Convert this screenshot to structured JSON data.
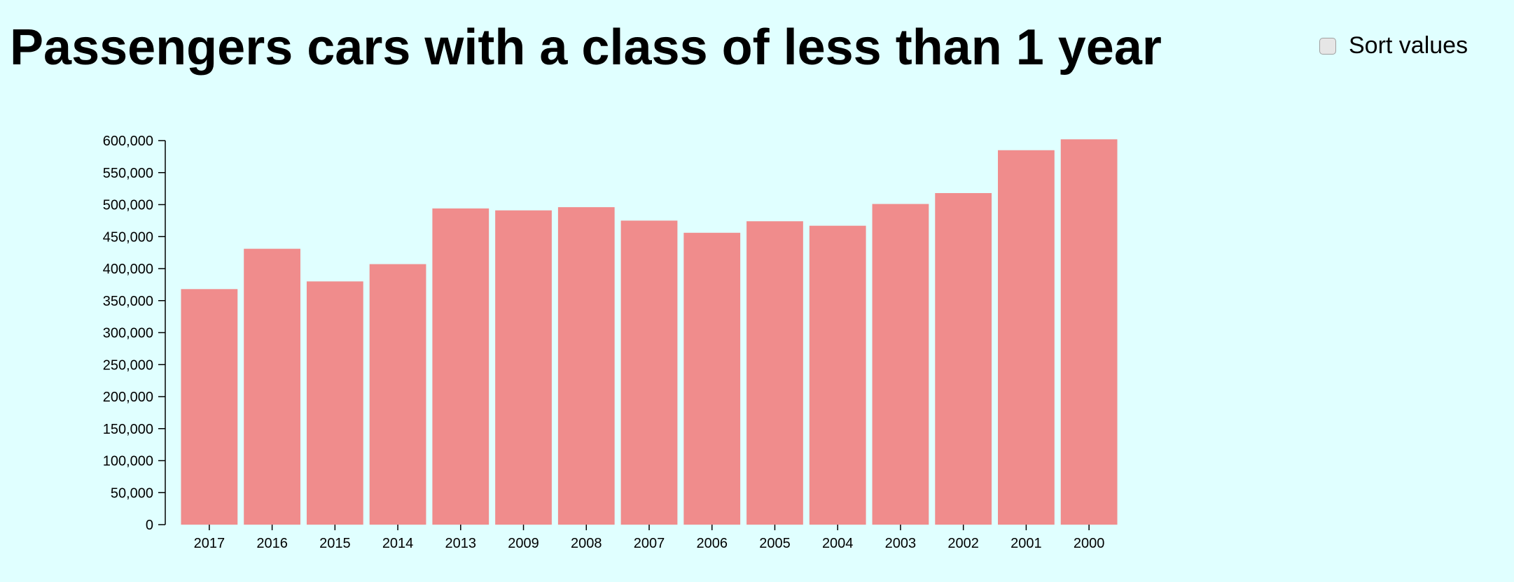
{
  "title": "Passengers cars with a class of less than 1 year",
  "controls": {
    "sort_label": "Sort values",
    "sort_checked": false
  },
  "colors": {
    "background": "#e0ffff",
    "bar": "#f08c8c",
    "axis": "#000000"
  },
  "chart_data": {
    "type": "bar",
    "categories": [
      "2017",
      "2016",
      "2015",
      "2014",
      "2013",
      "2009",
      "2008",
      "2007",
      "2006",
      "2005",
      "2004",
      "2003",
      "2002",
      "2001",
      "2000"
    ],
    "values": [
      368000,
      431000,
      380000,
      407000,
      494000,
      491000,
      496000,
      475000,
      456000,
      474000,
      467000,
      501000,
      518000,
      585000,
      602000
    ],
    "title": "Passengers cars with a class of less than 1 year",
    "xlabel": "",
    "ylabel": "",
    "ylim": [
      0,
      600000
    ],
    "yticks": [
      0,
      50000,
      100000,
      150000,
      200000,
      250000,
      300000,
      350000,
      400000,
      450000,
      500000,
      550000,
      600000
    ],
    "ytick_labels": [
      "0",
      "50,000",
      "100,000",
      "150,000",
      "200,000",
      "250,000",
      "300,000",
      "350,000",
      "400,000",
      "450,000",
      "500,000",
      "550,000",
      "600,000"
    ],
    "grid": false,
    "legend": "none"
  }
}
